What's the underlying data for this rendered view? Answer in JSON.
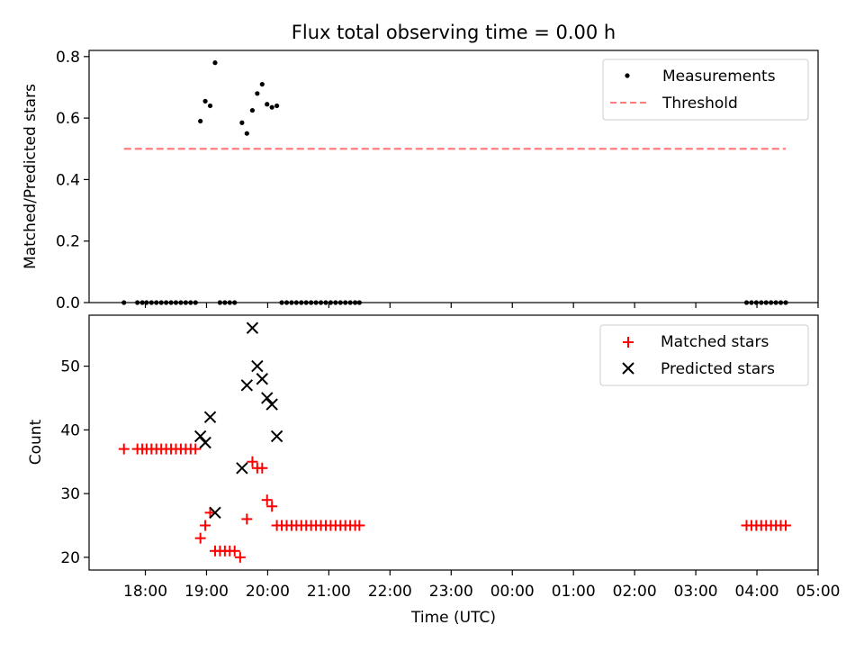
{
  "title": "Flux total observing time = 0.00 h",
  "chart_data": [
    {
      "type": "scatter",
      "ylabel": "Matched/Predicted stars",
      "xlim": [
        17.08,
        29.0
      ],
      "ylim": [
        0,
        0.82
      ],
      "yticks": [
        0.0,
        0.2,
        0.4,
        0.6,
        0.8
      ],
      "ytick_labels": [
        "0.0",
        "0.2",
        "0.4",
        "0.6",
        "0.8"
      ],
      "legend_position": "top-right",
      "series": [
        {
          "name": "Measurements",
          "marker": "dot",
          "color": "#000000",
          "points": [
            [
              17.65,
              0.0
            ],
            [
              17.87,
              0.0
            ],
            [
              17.95,
              0.0
            ],
            [
              18.02,
              0.0
            ],
            [
              18.1,
              0.0
            ],
            [
              18.18,
              0.0
            ],
            [
              18.26,
              0.0
            ],
            [
              18.34,
              0.0
            ],
            [
              18.42,
              0.0
            ],
            [
              18.5,
              0.0
            ],
            [
              18.58,
              0.0
            ],
            [
              18.66,
              0.0
            ],
            [
              18.74,
              0.0
            ],
            [
              18.82,
              0.0
            ],
            [
              18.9,
              0.59
            ],
            [
              18.98,
              0.655
            ],
            [
              19.06,
              0.64
            ],
            [
              19.14,
              0.78
            ],
            [
              19.22,
              0.0
            ],
            [
              19.3,
              0.0
            ],
            [
              19.38,
              0.0
            ],
            [
              19.46,
              0.0
            ],
            [
              19.58,
              0.585
            ],
            [
              19.66,
              0.55
            ],
            [
              19.75,
              0.625
            ],
            [
              19.83,
              0.68
            ],
            [
              19.91,
              0.71
            ],
            [
              19.99,
              0.645
            ],
            [
              20.07,
              0.635
            ],
            [
              20.15,
              0.64
            ],
            [
              20.23,
              0.0
            ],
            [
              20.31,
              0.0
            ],
            [
              20.39,
              0.0
            ],
            [
              20.47,
              0.0
            ],
            [
              20.55,
              0.0
            ],
            [
              20.63,
              0.0
            ],
            [
              20.71,
              0.0
            ],
            [
              20.79,
              0.0
            ],
            [
              20.87,
              0.0
            ],
            [
              20.95,
              0.0
            ],
            [
              21.03,
              0.0
            ],
            [
              21.11,
              0.0
            ],
            [
              21.19,
              0.0
            ],
            [
              21.27,
              0.0
            ],
            [
              21.35,
              0.0
            ],
            [
              21.43,
              0.0
            ],
            [
              21.5,
              0.0
            ],
            [
              27.83,
              0.0
            ],
            [
              27.91,
              0.0
            ],
            [
              27.99,
              0.0
            ],
            [
              28.07,
              0.0
            ],
            [
              28.15,
              0.0
            ],
            [
              28.23,
              0.0
            ],
            [
              28.31,
              0.0
            ],
            [
              28.39,
              0.0
            ],
            [
              28.47,
              0.0
            ]
          ]
        },
        {
          "name": "Threshold",
          "marker": "dashed-line",
          "color": "#ff7f7f",
          "points": [
            [
              17.65,
              0.5
            ],
            [
              28.47,
              0.5
            ]
          ]
        }
      ]
    },
    {
      "type": "scatter",
      "xlabel": "Time (UTC)",
      "ylabel": "Count",
      "xlim": [
        17.08,
        29.0
      ],
      "ylim": [
        18.0,
        58.0
      ],
      "yticks": [
        20,
        30,
        40,
        50
      ],
      "ytick_labels": [
        "20",
        "30",
        "40",
        "50"
      ],
      "xticks": [
        18,
        19,
        20,
        21,
        22,
        23,
        24,
        25,
        26,
        27,
        28,
        29
      ],
      "xtick_labels": [
        "18:00",
        "19:00",
        "20:00",
        "21:00",
        "22:00",
        "23:00",
        "00:00",
        "01:00",
        "02:00",
        "03:00",
        "04:00",
        "05:00"
      ],
      "legend_position": "top-right",
      "series": [
        {
          "name": "Matched stars",
          "marker": "plus",
          "color": "#ff0000",
          "points": [
            [
              17.65,
              37
            ],
            [
              17.87,
              37
            ],
            [
              17.95,
              37
            ],
            [
              18.02,
              37
            ],
            [
              18.1,
              37
            ],
            [
              18.18,
              37
            ],
            [
              18.26,
              37
            ],
            [
              18.34,
              37
            ],
            [
              18.42,
              37
            ],
            [
              18.5,
              37
            ],
            [
              18.58,
              37
            ],
            [
              18.66,
              37
            ],
            [
              18.74,
              37
            ],
            [
              18.82,
              37
            ],
            [
              18.9,
              23
            ],
            [
              18.98,
              25
            ],
            [
              19.06,
              27
            ],
            [
              19.14,
              21
            ],
            [
              19.22,
              21
            ],
            [
              19.3,
              21
            ],
            [
              19.38,
              21
            ],
            [
              19.46,
              21
            ],
            [
              19.55,
              20
            ],
            [
              19.66,
              26
            ],
            [
              19.75,
              35
            ],
            [
              19.83,
              34
            ],
            [
              19.91,
              34
            ],
            [
              19.99,
              29
            ],
            [
              20.07,
              28
            ],
            [
              20.15,
              25
            ],
            [
              20.23,
              25
            ],
            [
              20.31,
              25
            ],
            [
              20.39,
              25
            ],
            [
              20.47,
              25
            ],
            [
              20.55,
              25
            ],
            [
              20.63,
              25
            ],
            [
              20.71,
              25
            ],
            [
              20.79,
              25
            ],
            [
              20.87,
              25
            ],
            [
              20.95,
              25
            ],
            [
              21.03,
              25
            ],
            [
              21.11,
              25
            ],
            [
              21.19,
              25
            ],
            [
              21.27,
              25
            ],
            [
              21.35,
              25
            ],
            [
              21.43,
              25
            ],
            [
              21.5,
              25
            ],
            [
              27.83,
              25
            ],
            [
              27.91,
              25
            ],
            [
              27.99,
              25
            ],
            [
              28.07,
              25
            ],
            [
              28.15,
              25
            ],
            [
              28.23,
              25
            ],
            [
              28.31,
              25
            ],
            [
              28.39,
              25
            ],
            [
              28.47,
              25
            ]
          ]
        },
        {
          "name": "Predicted stars",
          "marker": "x",
          "color": "#000000",
          "points": [
            [
              18.9,
              39
            ],
            [
              18.98,
              38
            ],
            [
              19.06,
              42
            ],
            [
              19.14,
              27
            ],
            [
              19.58,
              34
            ],
            [
              19.66,
              47
            ],
            [
              19.75,
              56
            ],
            [
              19.83,
              50
            ],
            [
              19.91,
              48
            ],
            [
              19.99,
              45
            ],
            [
              20.07,
              44
            ],
            [
              20.15,
              39
            ]
          ]
        }
      ]
    }
  ]
}
